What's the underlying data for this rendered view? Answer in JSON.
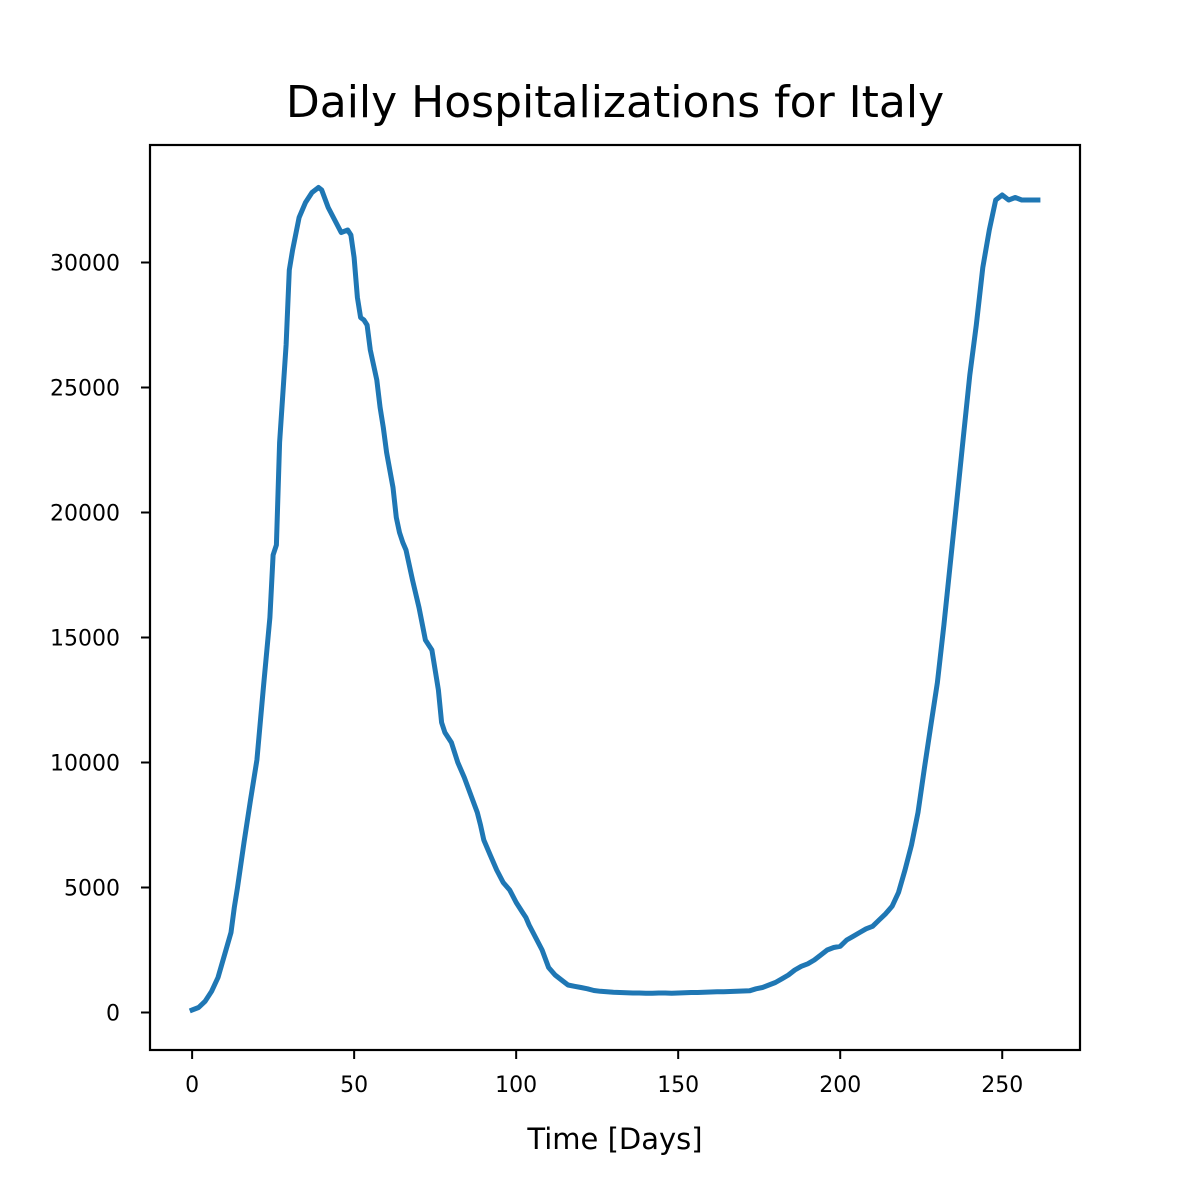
{
  "chart_data": {
    "type": "line",
    "title": "Daily Hospitalizations for Italy",
    "xlabel": "Time [Days]",
    "ylabel": "",
    "xlim": [
      -13,
      274
    ],
    "ylim": [
      -1500,
      34700
    ],
    "x_ticks": [
      0,
      50,
      100,
      150,
      200,
      250
    ],
    "y_ticks": [
      0,
      5000,
      10000,
      15000,
      20000,
      25000,
      30000
    ],
    "x_tick_labels": [
      "0",
      "50",
      "100",
      "150",
      "200",
      "250"
    ],
    "y_tick_labels": [
      "0",
      "5000",
      "10000",
      "15000",
      "20000",
      "25000",
      "30000"
    ],
    "grid": false,
    "legend": false,
    "series": [
      {
        "color": "#1f77b4",
        "x": [
          0,
          2,
          4,
          6,
          8,
          10,
          12,
          13,
          14,
          16,
          18,
          20,
          22,
          24,
          25,
          26,
          27,
          29,
          30,
          31,
          33,
          35,
          37,
          39,
          40,
          42,
          44,
          46,
          48,
          49,
          50,
          51,
          52,
          53,
          54,
          55,
          57,
          58,
          59,
          60,
          62,
          63,
          64,
          65,
          66,
          68,
          70,
          72,
          74,
          76,
          77,
          78,
          80,
          82,
          84,
          86,
          88,
          89,
          90,
          92,
          94,
          96,
          98,
          100,
          102,
          103,
          104,
          106,
          108,
          110,
          112,
          114,
          116,
          118,
          120,
          122,
          124,
          126,
          128,
          130,
          132,
          134,
          136,
          138,
          140,
          142,
          144,
          146,
          148,
          150,
          152,
          154,
          156,
          158,
          160,
          162,
          164,
          166,
          168,
          170,
          172,
          174,
          176,
          178,
          180,
          182,
          184,
          186,
          188,
          190,
          192,
          194,
          196,
          198,
          200,
          202,
          204,
          206,
          208,
          210,
          212,
          214,
          216,
          218,
          220,
          222,
          224,
          226,
          228,
          230,
          232,
          234,
          236,
          238,
          240,
          242,
          244,
          246,
          248,
          250,
          252,
          254,
          256,
          258,
          260,
          261
        ],
        "y": [
          100,
          200,
          450,
          850,
          1400,
          2300,
          3200,
          4200,
          5000,
          6800,
          8500,
          10100,
          13000,
          15800,
          18300,
          18700,
          22800,
          26700,
          29700,
          30500,
          31800,
          32400,
          32800,
          33000,
          32900,
          32200,
          31700,
          31200,
          31300,
          31100,
          30200,
          28600,
          27800,
          27700,
          27500,
          26500,
          25300,
          24200,
          23400,
          22400,
          21000,
          19800,
          19200,
          18800,
          18500,
          17300,
          16200,
          14900,
          14500,
          12900,
          11600,
          11200,
          10800,
          10000,
          9400,
          8700,
          8000,
          7500,
          6900,
          6300,
          5700,
          5200,
          4900,
          4400,
          4000,
          3800,
          3500,
          3000,
          2500,
          1800,
          1500,
          1300,
          1100,
          1050,
          1000,
          950,
          880,
          850,
          830,
          810,
          800,
          790,
          780,
          780,
          770,
          770,
          780,
          780,
          770,
          780,
          790,
          800,
          800,
          810,
          820,
          830,
          830,
          840,
          850,
          860,
          870,
          950,
          1000,
          1100,
          1200,
          1350,
          1500,
          1700,
          1850,
          1950,
          2100,
          2300,
          2500,
          2600,
          2650,
          2900,
          3050,
          3200,
          3350,
          3450,
          3700,
          3950,
          4250,
          4800,
          5700,
          6700,
          8000,
          9800,
          11500,
          13200,
          15500,
          18000,
          20500,
          23000,
          25500,
          27500,
          29800,
          31300,
          32500,
          32700,
          32500,
          32600,
          32500,
          32500,
          32500,
          32500
        ]
      }
    ]
  }
}
